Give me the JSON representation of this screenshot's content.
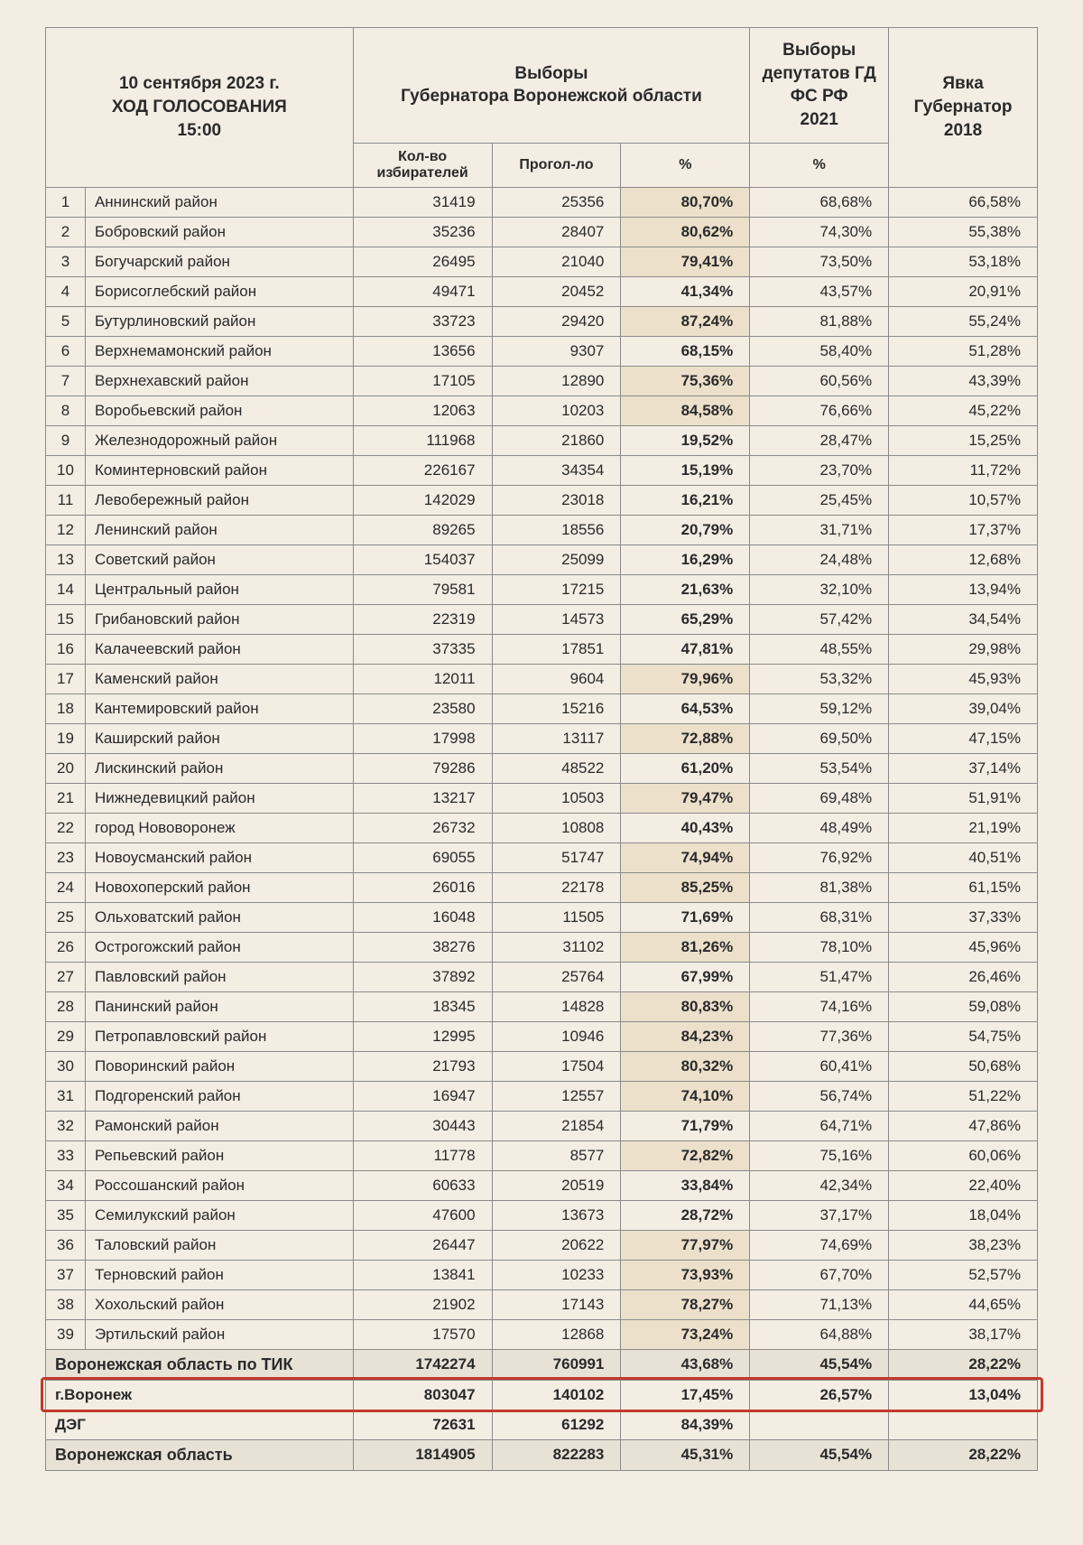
{
  "header": {
    "left_line1": "10 сентября 2023 г.",
    "left_line2": "ХОД ГОЛОСОВАНИЯ",
    "left_line3": "15:00",
    "mid_line1": "Выборы",
    "mid_line2": "Губернатора Воронежской области",
    "col4_line1": "Выборы",
    "col4_line2": "депутатов ГД",
    "col4_line3": "ФС РФ",
    "col4_line4": "2021",
    "col5_line1": "Явка Губернатор",
    "col5_line2": "2018",
    "sub1": "Кол-во избирателей",
    "sub2": "Прогол-ло",
    "sub3": "%",
    "sub4": "%"
  },
  "style": {
    "highlight_color": "#c23a2e",
    "shade_bg": "#ece0cb",
    "sum_bg": "#e8e2d6",
    "page_bg": "#f3ede3",
    "border_color": "#8a8a8a",
    "font_size_body": 17,
    "font_size_header": 19
  },
  "rows": [
    {
      "n": "1",
      "name": "Аннинский район",
      "v": "31419",
      "p": "25356",
      "pc": "80,70%",
      "d": "68,68%",
      "g": "66,58%",
      "sh": true
    },
    {
      "n": "2",
      "name": "Бобровский район",
      "v": "35236",
      "p": "28407",
      "pc": "80,62%",
      "d": "74,30%",
      "g": "55,38%",
      "sh": true
    },
    {
      "n": "3",
      "name": "Богучарский район",
      "v": "26495",
      "p": "21040",
      "pc": "79,41%",
      "d": "73,50%",
      "g": "53,18%",
      "sh": true
    },
    {
      "n": "4",
      "name": "Борисоглебский район",
      "v": "49471",
      "p": "20452",
      "pc": "41,34%",
      "d": "43,57%",
      "g": "20,91%",
      "sh": false
    },
    {
      "n": "5",
      "name": "Бутурлиновский район",
      "v": "33723",
      "p": "29420",
      "pc": "87,24%",
      "d": "81,88%",
      "g": "55,24%",
      "sh": true
    },
    {
      "n": "6",
      "name": "Верхнемамонский район",
      "v": "13656",
      "p": "9307",
      "pc": "68,15%",
      "d": "58,40%",
      "g": "51,28%",
      "sh": false
    },
    {
      "n": "7",
      "name": "Верхнехавский район",
      "v": "17105",
      "p": "12890",
      "pc": "75,36%",
      "d": "60,56%",
      "g": "43,39%",
      "sh": true
    },
    {
      "n": "8",
      "name": "Воробьевский район",
      "v": "12063",
      "p": "10203",
      "pc": "84,58%",
      "d": "76,66%",
      "g": "45,22%",
      "sh": true
    },
    {
      "n": "9",
      "name": "Железнодорожный район",
      "v": "111968",
      "p": "21860",
      "pc": "19,52%",
      "d": "28,47%",
      "g": "15,25%",
      "sh": false
    },
    {
      "n": "10",
      "name": "Коминтерновский район",
      "v": "226167",
      "p": "34354",
      "pc": "15,19%",
      "d": "23,70%",
      "g": "11,72%",
      "sh": false
    },
    {
      "n": "11",
      "name": "Левобережный район",
      "v": "142029",
      "p": "23018",
      "pc": "16,21%",
      "d": "25,45%",
      "g": "10,57%",
      "sh": false
    },
    {
      "n": "12",
      "name": "Ленинский район",
      "v": "89265",
      "p": "18556",
      "pc": "20,79%",
      "d": "31,71%",
      "g": "17,37%",
      "sh": false
    },
    {
      "n": "13",
      "name": "Советский район",
      "v": "154037",
      "p": "25099",
      "pc": "16,29%",
      "d": "24,48%",
      "g": "12,68%",
      "sh": false
    },
    {
      "n": "14",
      "name": "Центральный район",
      "v": "79581",
      "p": "17215",
      "pc": "21,63%",
      "d": "32,10%",
      "g": "13,94%",
      "sh": false
    },
    {
      "n": "15",
      "name": "Грибановский район",
      "v": "22319",
      "p": "14573",
      "pc": "65,29%",
      "d": "57,42%",
      "g": "34,54%",
      "sh": false
    },
    {
      "n": "16",
      "name": "Калачеевский район",
      "v": "37335",
      "p": "17851",
      "pc": "47,81%",
      "d": "48,55%",
      "g": "29,98%",
      "sh": false
    },
    {
      "n": "17",
      "name": "Каменский район",
      "v": "12011",
      "p": "9604",
      "pc": "79,96%",
      "d": "53,32%",
      "g": "45,93%",
      "sh": true
    },
    {
      "n": "18",
      "name": "Кантемировский район",
      "v": "23580",
      "p": "15216",
      "pc": "64,53%",
      "d": "59,12%",
      "g": "39,04%",
      "sh": false
    },
    {
      "n": "19",
      "name": "Каширский район",
      "v": "17998",
      "p": "13117",
      "pc": "72,88%",
      "d": "69,50%",
      "g": "47,15%",
      "sh": true
    },
    {
      "n": "20",
      "name": "Лискинский район",
      "v": "79286",
      "p": "48522",
      "pc": "61,20%",
      "d": "53,54%",
      "g": "37,14%",
      "sh": false
    },
    {
      "n": "21",
      "name": "Нижнедевицкий район",
      "v": "13217",
      "p": "10503",
      "pc": "79,47%",
      "d": "69,48%",
      "g": "51,91%",
      "sh": true
    },
    {
      "n": "22",
      "name": "город Нововоронеж",
      "v": "26732",
      "p": "10808",
      "pc": "40,43%",
      "d": "48,49%",
      "g": "21,19%",
      "sh": false
    },
    {
      "n": "23",
      "name": "Новоусманский район",
      "v": "69055",
      "p": "51747",
      "pc": "74,94%",
      "d": "76,92%",
      "g": "40,51%",
      "sh": true
    },
    {
      "n": "24",
      "name": "Новохоперский район",
      "v": "26016",
      "p": "22178",
      "pc": "85,25%",
      "d": "81,38%",
      "g": "61,15%",
      "sh": true
    },
    {
      "n": "25",
      "name": "Ольховатский район",
      "v": "16048",
      "p": "11505",
      "pc": "71,69%",
      "d": "68,31%",
      "g": "37,33%",
      "sh": false
    },
    {
      "n": "26",
      "name": "Острогожский район",
      "v": "38276",
      "p": "31102",
      "pc": "81,26%",
      "d": "78,10%",
      "g": "45,96%",
      "sh": true
    },
    {
      "n": "27",
      "name": "Павловский район",
      "v": "37892",
      "p": "25764",
      "pc": "67,99%",
      "d": "51,47%",
      "g": "26,46%",
      "sh": false
    },
    {
      "n": "28",
      "name": "Панинский район",
      "v": "18345",
      "p": "14828",
      "pc": "80,83%",
      "d": "74,16%",
      "g": "59,08%",
      "sh": true
    },
    {
      "n": "29",
      "name": "Петропавловский район",
      "v": "12995",
      "p": "10946",
      "pc": "84,23%",
      "d": "77,36%",
      "g": "54,75%",
      "sh": true
    },
    {
      "n": "30",
      "name": "Поворинский район",
      "v": "21793",
      "p": "17504",
      "pc": "80,32%",
      "d": "60,41%",
      "g": "50,68%",
      "sh": true
    },
    {
      "n": "31",
      "name": "Подгоренский район",
      "v": "16947",
      "p": "12557",
      "pc": "74,10%",
      "d": "56,74%",
      "g": "51,22%",
      "sh": true
    },
    {
      "n": "32",
      "name": "Рамонский район",
      "v": "30443",
      "p": "21854",
      "pc": "71,79%",
      "d": "64,71%",
      "g": "47,86%",
      "sh": false
    },
    {
      "n": "33",
      "name": "Репьевский район",
      "v": "11778",
      "p": "8577",
      "pc": "72,82%",
      "d": "75,16%",
      "g": "60,06%",
      "sh": true
    },
    {
      "n": "34",
      "name": "Россошанский район",
      "v": "60633",
      "p": "20519",
      "pc": "33,84%",
      "d": "42,34%",
      "g": "22,40%",
      "sh": false
    },
    {
      "n": "35",
      "name": "Семилукский район",
      "v": "47600",
      "p": "13673",
      "pc": "28,72%",
      "d": "37,17%",
      "g": "18,04%",
      "sh": false
    },
    {
      "n": "36",
      "name": "Таловский район",
      "v": "26447",
      "p": "20622",
      "pc": "77,97%",
      "d": "74,69%",
      "g": "38,23%",
      "sh": true
    },
    {
      "n": "37",
      "name": "Терновский район",
      "v": "13841",
      "p": "10233",
      "pc": "73,93%",
      "d": "67,70%",
      "g": "52,57%",
      "sh": true
    },
    {
      "n": "38",
      "name": "Хохольский район",
      "v": "21902",
      "p": "17143",
      "pc": "78,27%",
      "d": "71,13%",
      "g": "44,65%",
      "sh": true
    },
    {
      "n": "39",
      "name": "Эртильский район",
      "v": "17570",
      "p": "12868",
      "pc": "73,24%",
      "d": "64,88%",
      "g": "38,17%",
      "sh": true
    }
  ],
  "sum1": {
    "name": "Воронежская область по ТИК",
    "v": "1742274",
    "p": "760991",
    "pc": "43,68%",
    "d": "45,54%",
    "g": "28,22%"
  },
  "hl": {
    "name": "г.Воронеж",
    "v": "803047",
    "p": "140102",
    "pc": "17,45%",
    "d": "26,57%",
    "g": "13,04%"
  },
  "deg": {
    "name": "ДЭГ",
    "v": "72631",
    "p": "61292",
    "pc": "84,39%",
    "d": "",
    "g": ""
  },
  "final": {
    "name": "Воронежская область",
    "v": "1814905",
    "p": "822283",
    "pc": "45,31%",
    "d": "45,54%",
    "g": "28,22%"
  }
}
